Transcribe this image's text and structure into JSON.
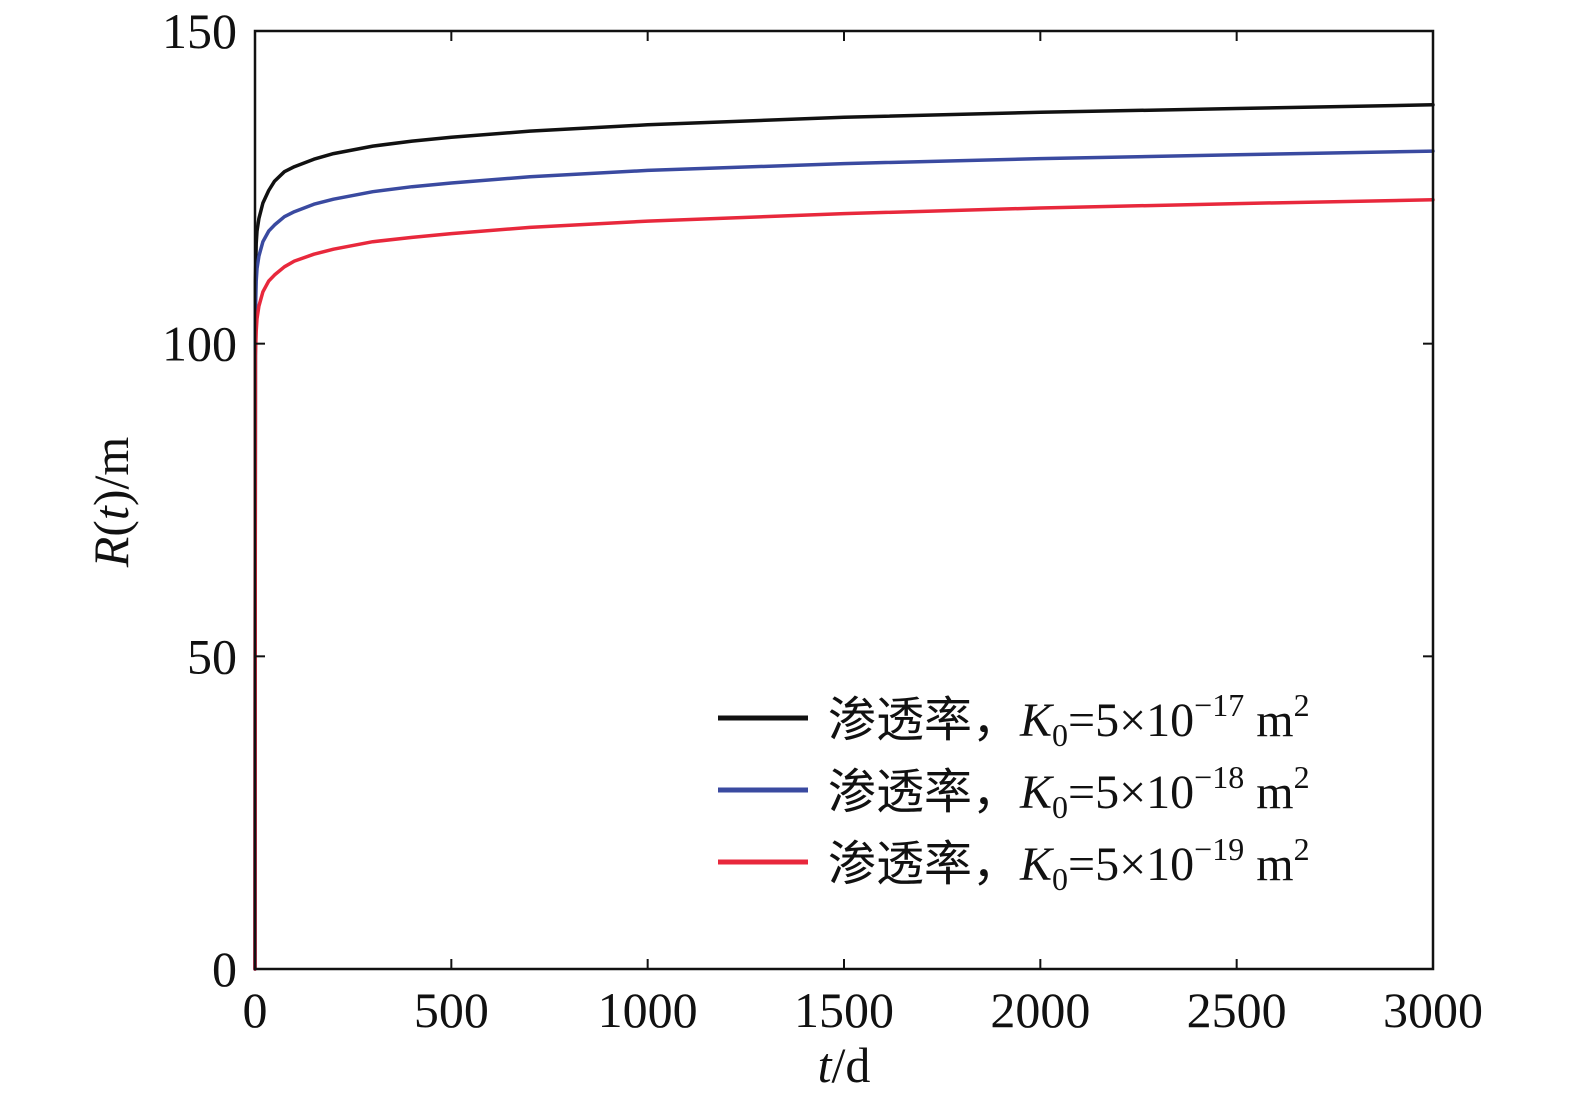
{
  "chart_data": {
    "type": "line",
    "xlabel": {
      "var": "t",
      "unit": "/d"
    },
    "ylabel": {
      "var": "R",
      "arg": "t",
      "unit": "/m"
    },
    "xlim": [
      0,
      3000
    ],
    "ylim": [
      0,
      150
    ],
    "xticks": [
      0,
      500,
      1000,
      1500,
      2000,
      2500,
      3000
    ],
    "yticks": [
      0,
      50,
      100,
      150
    ],
    "grid": false,
    "legend_position": "bottom-right",
    "series": [
      {
        "name": "渗透率，K0=5×10−17 m2",
        "label_prefix": "渗透率，",
        "label_k": "K",
        "label_k_sub": "0",
        "label_eq": "=5×10",
        "label_exp": "−17",
        "label_unit": " m",
        "label_unit_sup": "2",
        "color": "#111111",
        "x": [
          0,
          1,
          3,
          5,
          10,
          20,
          35,
          50,
          75,
          100,
          150,
          200,
          300,
          400,
          500,
          700,
          1000,
          1500,
          2000,
          2500,
          3000
        ],
        "y": [
          0,
          110,
          116,
          118,
          120,
          122.5,
          124.5,
          126,
          127.5,
          128.3,
          129.5,
          130.4,
          131.6,
          132.4,
          133,
          134,
          135,
          136.2,
          137,
          137.6,
          138.2
        ]
      },
      {
        "name": "渗透率，K0=5×10−18 m2",
        "label_prefix": "渗透率，",
        "label_k": "K",
        "label_k_sub": "0",
        "label_eq": "=5×10",
        "label_exp": "−18",
        "label_unit": " m",
        "label_unit_sup": "2",
        "color": "#3a4aa0",
        "x": [
          0,
          1,
          3,
          5,
          10,
          20,
          35,
          50,
          75,
          100,
          150,
          200,
          300,
          400,
          500,
          700,
          1000,
          1500,
          2000,
          2500,
          3000
        ],
        "y": [
          0,
          105,
          110,
          112,
          114,
          116.3,
          118,
          119,
          120.3,
          121.1,
          122.3,
          123.1,
          124.3,
          125.1,
          125.7,
          126.7,
          127.7,
          128.8,
          129.6,
          130.2,
          130.8
        ]
      },
      {
        "name": "渗透率，K0=5×10−19 m2",
        "label_prefix": "渗透率，",
        "label_k": "K",
        "label_k_sub": "0",
        "label_eq": "=5×10",
        "label_exp": "−19",
        "label_unit": " m",
        "label_unit_sup": "2",
        "color": "#e8283c",
        "x": [
          0,
          1,
          3,
          5,
          10,
          20,
          35,
          50,
          75,
          100,
          150,
          200,
          300,
          400,
          500,
          700,
          1000,
          1500,
          2000,
          2500,
          3000
        ],
        "y": [
          0,
          98,
          102,
          104,
          106,
          108.3,
          110,
          111,
          112.3,
          113.2,
          114.3,
          115.1,
          116.3,
          117,
          117.6,
          118.6,
          119.6,
          120.8,
          121.7,
          122.4,
          123
        ]
      }
    ]
  }
}
